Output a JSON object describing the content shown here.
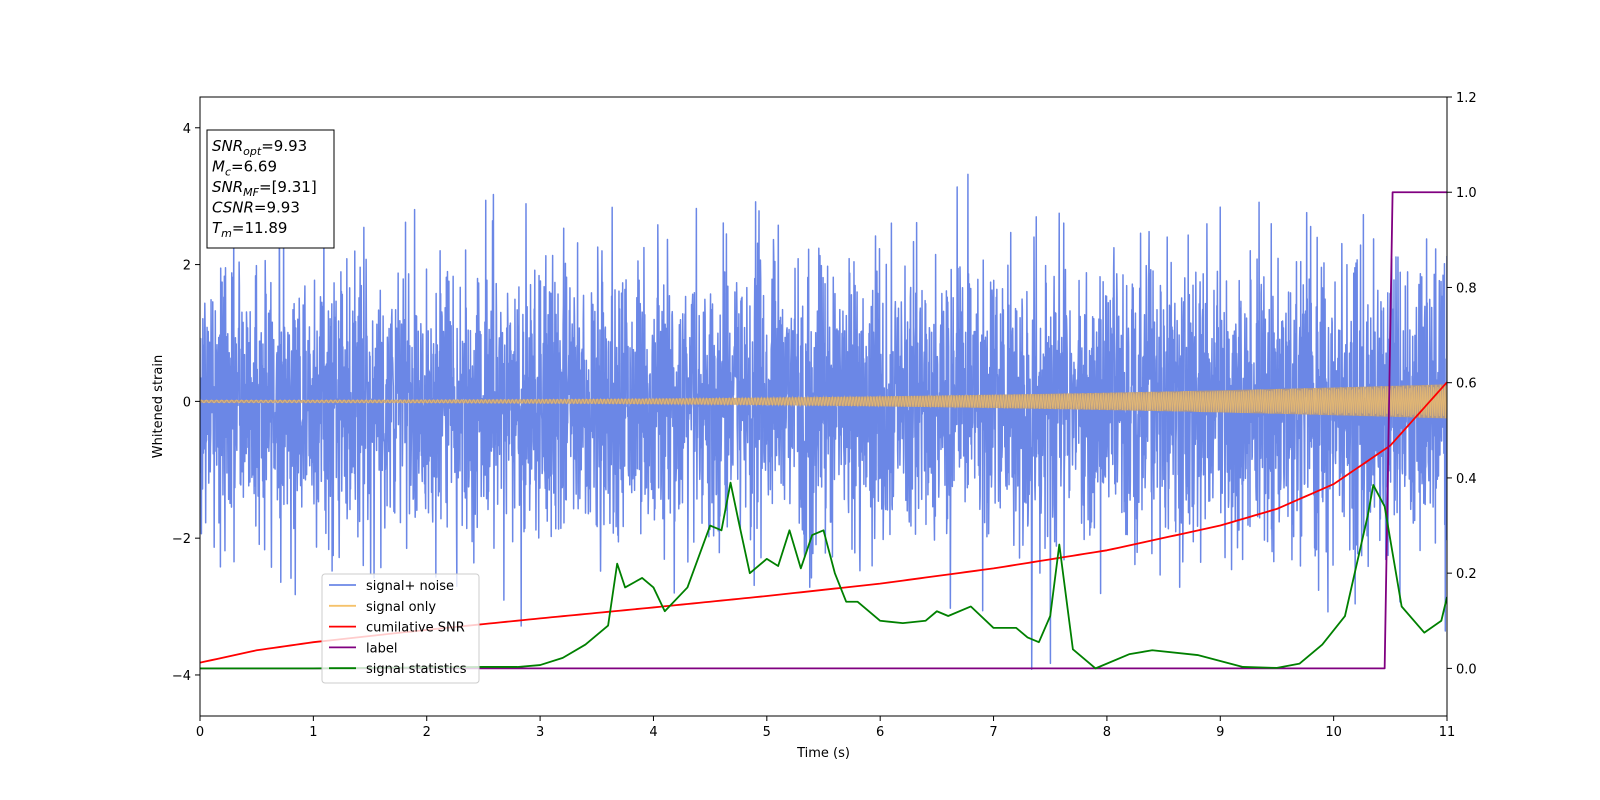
{
  "chart_data": {
    "type": "line",
    "xlabel": "Time (s)",
    "ylabel": "Whitened strain",
    "xlim": [
      0,
      11
    ],
    "ylim_left": [
      -4.6,
      4.45
    ],
    "ylim_right": [
      -0.1,
      1.2
    ],
    "x_ticks": [
      0,
      1,
      2,
      3,
      4,
      5,
      6,
      7,
      8,
      9,
      10,
      11
    ],
    "y_ticks_left": [
      -4,
      -2,
      0,
      2,
      4
    ],
    "y_ticks_right": [
      0.0,
      0.2,
      0.4,
      0.6,
      0.8,
      1.0,
      1.2
    ],
    "grid": false,
    "legend_position": "lower-left",
    "series": [
      {
        "name": "signal+ noise",
        "axis": "left",
        "color": "#6b87e6",
        "description_kind": "noise",
        "noise_std": 1.0,
        "abs_max": 4.03
      },
      {
        "name": "signal only",
        "axis": "left",
        "color": "#f5c26b",
        "description_kind": "chirp",
        "amplitude_start": 0.02,
        "amplitude_end": 0.25
      },
      {
        "name": "cumilative SNR",
        "axis": "right",
        "color": "#ff0000",
        "x": [
          0,
          0.5,
          1,
          2,
          3,
          4,
          5,
          6,
          7,
          8,
          9,
          9.5,
          10,
          10.5,
          11
        ],
        "y": [
          0.012,
          0.038,
          0.055,
          0.081,
          0.105,
          0.128,
          0.152,
          0.178,
          0.21,
          0.248,
          0.3,
          0.335,
          0.387,
          0.468,
          0.601
        ]
      },
      {
        "name": "label",
        "axis": "right",
        "color": "#800080",
        "x": [
          0,
          10.45,
          10.52,
          11
        ],
        "y": [
          0.0,
          0.0,
          1.0,
          1.0
        ]
      },
      {
        "name": "signal statistics",
        "axis": "right",
        "color": "#008000",
        "x": [
          0,
          0.5,
          1,
          1.5,
          2,
          2.5,
          2.8,
          3,
          3.2,
          3.4,
          3.6,
          3.68,
          3.75,
          3.9,
          4.0,
          4.1,
          4.3,
          4.5,
          4.6,
          4.68,
          4.75,
          4.85,
          5.0,
          5.1,
          5.2,
          5.3,
          5.4,
          5.5,
          5.6,
          5.7,
          5.8,
          6.0,
          6.2,
          6.4,
          6.5,
          6.6,
          6.8,
          7.0,
          7.2,
          7.3,
          7.4,
          7.5,
          7.58,
          7.7,
          7.9,
          8.2,
          8.4,
          8.8,
          9.2,
          9.5,
          9.7,
          9.9,
          10.1,
          10.3,
          10.35,
          10.45,
          10.6,
          10.8,
          10.95,
          11
        ],
        "y": [
          0.0,
          0.0,
          0.0,
          0.001,
          0.002,
          0.003,
          0.003,
          0.007,
          0.022,
          0.05,
          0.09,
          0.22,
          0.17,
          0.19,
          0.17,
          0.12,
          0.17,
          0.3,
          0.29,
          0.39,
          0.31,
          0.2,
          0.23,
          0.215,
          0.29,
          0.21,
          0.28,
          0.29,
          0.2,
          0.14,
          0.14,
          0.1,
          0.095,
          0.1,
          0.12,
          0.11,
          0.13,
          0.085,
          0.085,
          0.065,
          0.055,
          0.11,
          0.26,
          0.04,
          0.0,
          0.03,
          0.038,
          0.028,
          0.003,
          0.001,
          0.01,
          0.05,
          0.11,
          0.32,
          0.385,
          0.34,
          0.13,
          0.075,
          0.1,
          0.15
        ]
      }
    ],
    "annotation": {
      "lines": [
        {
          "main": "SNR",
          "sub": "opt",
          "value": "=9.93"
        },
        {
          "main": "M",
          "sub": "c",
          "value": "=6.69"
        },
        {
          "main": "SNR",
          "sub": "MF",
          "value": "=[9.31]"
        },
        {
          "main": "CSNR",
          "sub": "",
          "value": "=9.93"
        },
        {
          "main": "T",
          "sub": "m",
          "value": "=11.89"
        }
      ]
    }
  }
}
